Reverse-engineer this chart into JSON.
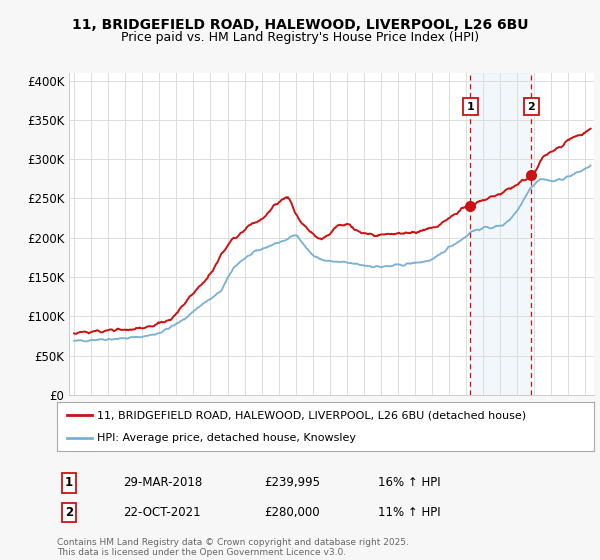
{
  "title_line1": "11, BRIDGEFIELD ROAD, HALEWOOD, LIVERPOOL, L26 6BU",
  "title_line2": "Price paid vs. HM Land Registry's House Price Index (HPI)",
  "ylabel_ticks": [
    "£0",
    "£50K",
    "£100K",
    "£150K",
    "£200K",
    "£250K",
    "£300K",
    "£350K",
    "£400K"
  ],
  "ytick_values": [
    0,
    50000,
    100000,
    150000,
    200000,
    250000,
    300000,
    350000,
    400000
  ],
  "ylim": [
    0,
    410000
  ],
  "xlim_start": 1994.7,
  "xlim_end": 2025.5,
  "hpi_color": "#7ab0d4",
  "price_color": "#cc1111",
  "vline_color": "#cc1111",
  "marker1_date": 2018.25,
  "marker1_price": 239995,
  "marker2_date": 2021.83,
  "marker2_price": 280000,
  "legend_line1": "11, BRIDGEFIELD ROAD, HALEWOOD, LIVERPOOL, L26 6BU (detached house)",
  "legend_line2": "HPI: Average price, detached house, Knowsley",
  "sale1_box": "1",
  "sale1_date": "29-MAR-2018",
  "sale1_price": "£239,995",
  "sale1_hpi": "16% ↑ HPI",
  "sale2_box": "2",
  "sale2_date": "22-OCT-2021",
  "sale2_price": "£280,000",
  "sale2_hpi": "11% ↑ HPI",
  "footer": "Contains HM Land Registry data © Crown copyright and database right 2025.\nThis data is licensed under the Open Government Licence v3.0.",
  "bg_color": "#f7f7f7",
  "plot_bg_color": "#ffffff"
}
